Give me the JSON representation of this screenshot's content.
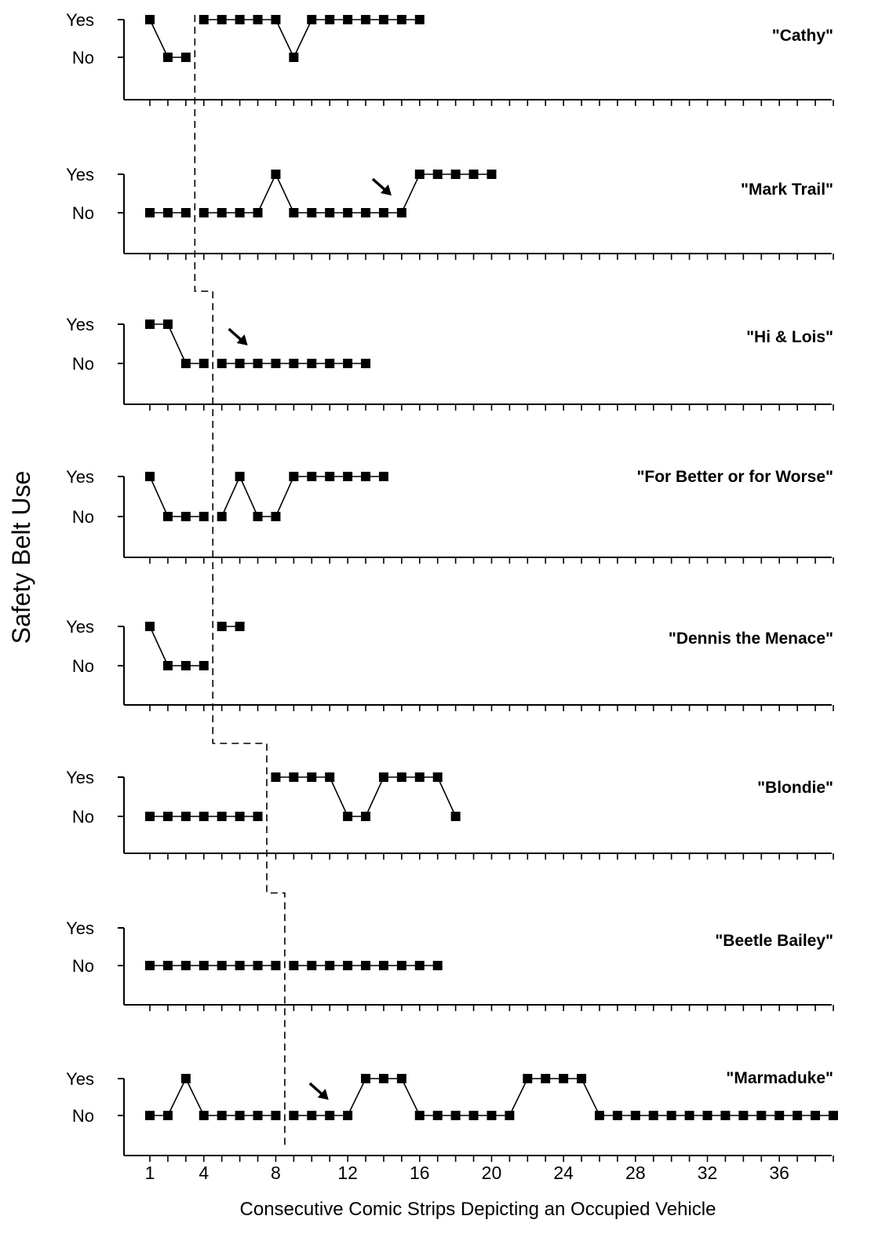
{
  "chart_data": {
    "type": "line",
    "chart_kind": "multiple-baseline step plot",
    "ylabel": "Safety Belt Use",
    "xlabel": "Consecutive Comic Strips Depicting an Occupied Vehicle",
    "y_categories": [
      "No",
      "Yes"
    ],
    "x_tick_labels": [
      "1",
      "4",
      "8",
      "12",
      "16",
      "20",
      "24",
      "28",
      "32",
      "36"
    ],
    "x_ticks": [
      1,
      4,
      8,
      12,
      16,
      20,
      24,
      28,
      32,
      36
    ],
    "xlim": [
      1,
      39
    ],
    "panels": [
      {
        "name": "\"Cathy\"",
        "phase_change_after": 3.5,
        "arrow_at": null,
        "values": [
          "Yes",
          "No",
          "No",
          "Yes",
          "Yes",
          "Yes",
          "Yes",
          "Yes",
          "No",
          "Yes",
          "Yes",
          "Yes",
          "Yes",
          "Yes",
          "Yes",
          "Yes"
        ]
      },
      {
        "name": "\"Mark Trail\"",
        "phase_change_after": 3.5,
        "arrow_at": 14,
        "values": [
          "No",
          "No",
          "No",
          "No",
          "No",
          "No",
          "No",
          "Yes",
          "No",
          "No",
          "No",
          "No",
          "No",
          "No",
          "No",
          "Yes",
          "Yes",
          "Yes",
          "Yes",
          "Yes"
        ]
      },
      {
        "name": "\"Hi & Lois\"",
        "phase_change_after": 4.5,
        "arrow_at": 6,
        "values": [
          "Yes",
          "Yes",
          "No",
          "No",
          "No",
          "No",
          "No",
          "No",
          "No",
          "No",
          "No",
          "No",
          "No"
        ]
      },
      {
        "name": "\"For Better or for Worse\"",
        "phase_change_after": 4.5,
        "arrow_at": null,
        "values": [
          "Yes",
          "No",
          "No",
          "No",
          "No",
          "Yes",
          "No",
          "No",
          "Yes",
          "Yes",
          "Yes",
          "Yes",
          "Yes",
          "Yes"
        ]
      },
      {
        "name": "\"Dennis the Menace\"",
        "phase_change_after": 4.5,
        "arrow_at": null,
        "values": [
          "Yes",
          "No",
          "No",
          "No",
          "Yes",
          "Yes"
        ]
      },
      {
        "name": "\"Blondie\"",
        "phase_change_after": 7.5,
        "arrow_at": null,
        "values": [
          "No",
          "No",
          "No",
          "No",
          "No",
          "No",
          "No",
          "Yes",
          "Yes",
          "Yes",
          "Yes",
          "No",
          "No",
          "Yes",
          "Yes",
          "Yes",
          "Yes",
          "No"
        ]
      },
      {
        "name": "\"Beetle Bailey\"",
        "phase_change_after": 8.5,
        "arrow_at": null,
        "values": [
          "No",
          "No",
          "No",
          "No",
          "No",
          "No",
          "No",
          "No",
          "No",
          "No",
          "No",
          "No",
          "No",
          "No",
          "No",
          "No",
          "No"
        ]
      },
      {
        "name": "\"Marmaduke\"",
        "phase_change_after": 8.5,
        "arrow_at": 10.5,
        "values": [
          "No",
          "No",
          "Yes",
          "No",
          "No",
          "No",
          "No",
          "No",
          "No",
          "No",
          "No",
          "No",
          "Yes",
          "Yes",
          "Yes",
          "No",
          "No",
          "No",
          "No",
          "No",
          "No",
          "Yes",
          "Yes",
          "Yes",
          "Yes",
          "No",
          "No",
          "No",
          "No",
          "No",
          "No",
          "No",
          "No",
          "No",
          "No",
          "No",
          "No",
          "No",
          "No"
        ]
      }
    ]
  }
}
